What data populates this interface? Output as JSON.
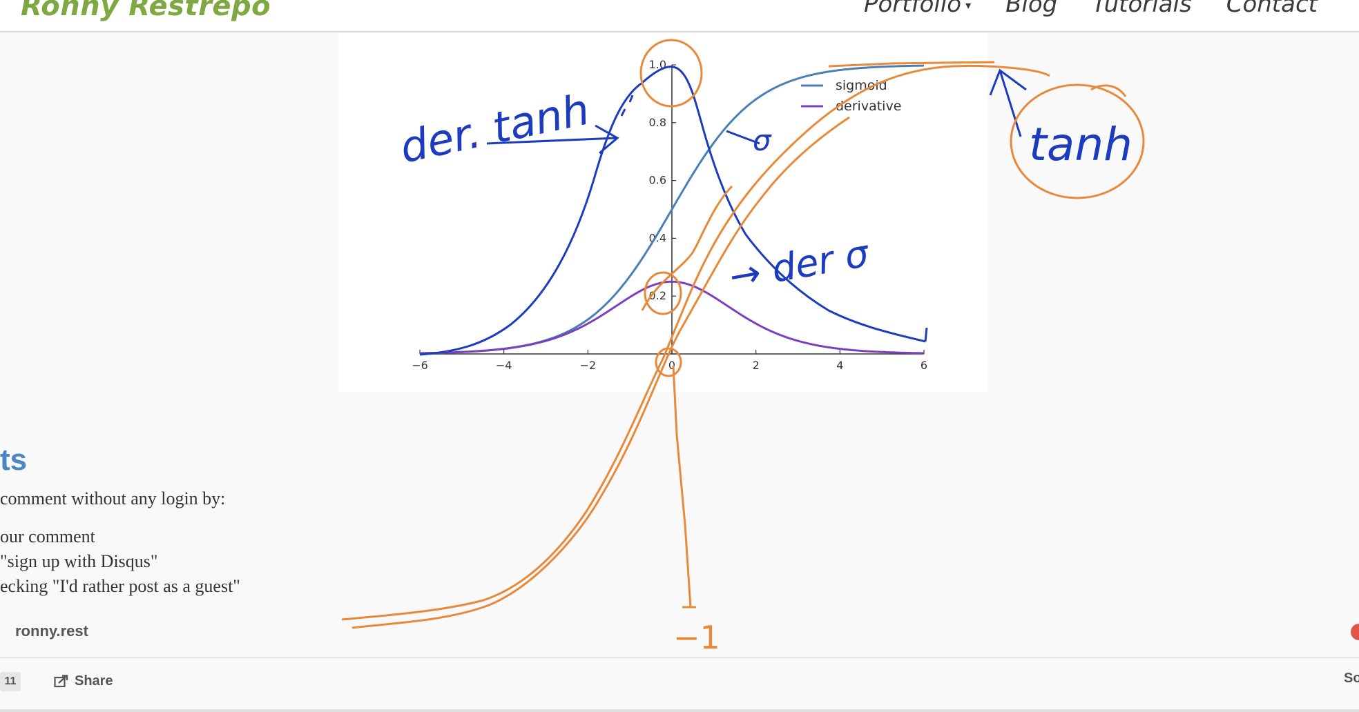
{
  "navbar": {
    "brand": "Ronny Restrepo",
    "links": [
      {
        "label": "Portfolio",
        "has_dropdown": true
      },
      {
        "label": "Blog"
      },
      {
        "label": "Tutorials"
      },
      {
        "label": "Contact"
      }
    ]
  },
  "chart_data": {
    "type": "line",
    "x_ticks": [
      "−6",
      "−4",
      "−2",
      "0",
      "2",
      "4",
      "6"
    ],
    "y_ticks": [
      "0",
      "0.2",
      "0.4",
      "0.6",
      "0.8",
      "1.0"
    ],
    "xlim": [
      -6,
      6
    ],
    "ylim": [
      0,
      1.0
    ],
    "series": [
      {
        "name": "sigmoid",
        "color": "#4a7fb5",
        "function": "1/(1+exp(-x))"
      },
      {
        "name": "derivative",
        "color": "#7b3fbf",
        "function": "s(x)*(1-s(x))"
      }
    ],
    "legend_position": "top-right"
  },
  "annotations": {
    "der_tanh": "der. tanh",
    "sigma": "σ",
    "der_sigma": "→ der σ",
    "tanh": "tanh",
    "minus_one": "−1",
    "colors": {
      "blue_pen": "#1c3bbf",
      "orange_pen": "#e8893a"
    }
  },
  "comments": {
    "title": "ts",
    "intro": "comment without any login by:",
    "steps": [
      "our comment",
      "\"sign up with Disqus\"",
      "ecking \"I'd rather post as a guest\""
    ],
    "site": "ronny.rest",
    "count": "11",
    "share_label": "Share",
    "sort_label": "So"
  }
}
